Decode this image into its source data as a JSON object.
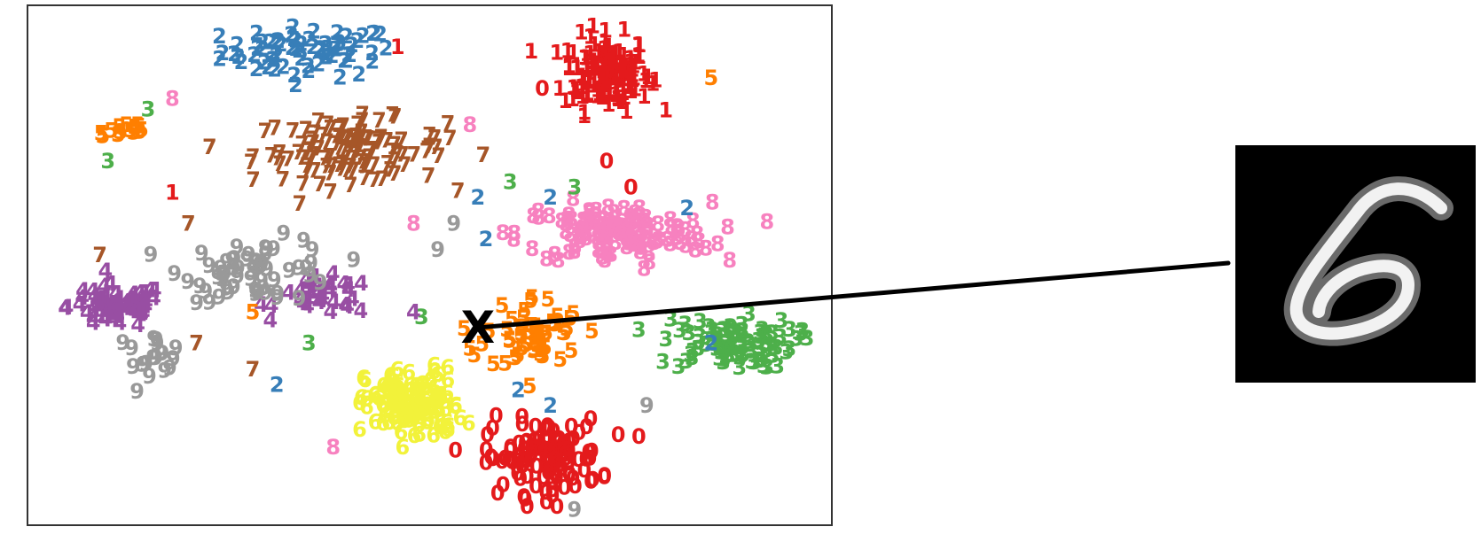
{
  "chart_data": {
    "type": "scatter",
    "title": "",
    "xlabel": "",
    "ylabel": "",
    "xlim": [
      0,
      100
    ],
    "ylim": [
      0,
      100
    ],
    "grid": false,
    "axes_ticks": false,
    "class_colors": {
      "0": "#e41a1c",
      "1": "#e41a1c",
      "2": "#377eb8",
      "3": "#4daf4a",
      "4": "#984ea3",
      "5": "#ff7f00",
      "6": "#f2f23a",
      "7": "#a65628",
      "8": "#f781bf",
      "9": "#999999"
    },
    "clusters": [
      {
        "label": "2",
        "center": [
          35,
          91
        ],
        "spread": [
          9,
          4
        ],
        "count": 70
      },
      {
        "label": "1",
        "center": [
          72,
          87
        ],
        "spread": [
          4.5,
          6
        ],
        "count": 140
      },
      {
        "label": "7",
        "center": [
          40,
          72
        ],
        "spread": [
          10,
          5
        ],
        "count": 120
      },
      {
        "label": "5",
        "center": [
          12,
          76
        ],
        "spread": [
          3,
          1.6
        ],
        "count": 14
      },
      {
        "label": "4",
        "center": [
          11,
          42
        ],
        "spread": [
          5,
          3.5
        ],
        "count": 70
      },
      {
        "label": "4",
        "center": [
          37,
          44
        ],
        "spread": [
          5,
          3
        ],
        "count": 35
      },
      {
        "label": "9",
        "center": [
          29,
          49
        ],
        "spread": [
          8,
          5
        ],
        "count": 60
      },
      {
        "label": "9",
        "center": [
          15,
          33
        ],
        "spread": [
          4,
          3
        ],
        "count": 18
      },
      {
        "label": "8",
        "center": [
          73,
          56
        ],
        "spread": [
          10,
          5
        ],
        "count": 130
      },
      {
        "label": "5",
        "center": [
          63,
          37
        ],
        "spread": [
          5,
          6
        ],
        "count": 55
      },
      {
        "label": "3",
        "center": [
          87,
          35
        ],
        "spread": [
          7,
          4
        ],
        "count": 90
      },
      {
        "label": "6",
        "center": [
          48,
          23
        ],
        "spread": [
          5,
          6
        ],
        "count": 120
      },
      {
        "label": "0",
        "center": [
          64,
          13
        ],
        "spread": [
          6,
          6
        ],
        "count": 110
      }
    ],
    "extra_points": [
      {
        "label": "1",
        "x": 46,
        "y": 92
      },
      {
        "label": "1",
        "x": 18,
        "y": 64
      },
      {
        "label": "0",
        "x": 64,
        "y": 84
      },
      {
        "label": "0",
        "x": 72,
        "y": 70
      },
      {
        "label": "0",
        "x": 75,
        "y": 65
      },
      {
        "label": "5",
        "x": 85,
        "y": 86
      },
      {
        "label": "3",
        "x": 10,
        "y": 70
      },
      {
        "label": "3",
        "x": 15,
        "y": 80
      },
      {
        "label": "8",
        "x": 18,
        "y": 82
      },
      {
        "label": "3",
        "x": 60,
        "y": 66
      },
      {
        "label": "3",
        "x": 68,
        "y": 65
      },
      {
        "label": "2",
        "x": 65,
        "y": 63
      },
      {
        "label": "2",
        "x": 56,
        "y": 63
      },
      {
        "label": "2",
        "x": 57,
        "y": 55
      },
      {
        "label": "2",
        "x": 82,
        "y": 61
      },
      {
        "label": "9",
        "x": 51,
        "y": 53
      },
      {
        "label": "9",
        "x": 53,
        "y": 58
      },
      {
        "label": "7",
        "x": 9,
        "y": 52
      },
      {
        "label": "7",
        "x": 20,
        "y": 58
      },
      {
        "label": "7",
        "x": 21,
        "y": 35
      },
      {
        "label": "7",
        "x": 28,
        "y": 30
      },
      {
        "label": "2",
        "x": 31,
        "y": 27
      },
      {
        "label": "2",
        "x": 61,
        "y": 26
      },
      {
        "label": "2",
        "x": 65,
        "y": 23
      },
      {
        "label": "2",
        "x": 85,
        "y": 35
      },
      {
        "label": "3",
        "x": 49,
        "y": 40
      },
      {
        "label": "3",
        "x": 35,
        "y": 35
      },
      {
        "label": "4",
        "x": 48,
        "y": 41
      },
      {
        "label": "5",
        "x": 28,
        "y": 41
      },
      {
        "label": "5",
        "x": 55,
        "y": 34
      },
      {
        "label": "8",
        "x": 38,
        "y": 15
      },
      {
        "label": "8",
        "x": 55,
        "y": 77
      },
      {
        "label": "8",
        "x": 48,
        "y": 58
      },
      {
        "label": "0",
        "x": 76,
        "y": 17
      },
      {
        "label": "0",
        "x": 57,
        "y": 12
      },
      {
        "label": "9",
        "x": 68,
        "y": 3
      },
      {
        "label": "9",
        "x": 77,
        "y": 23
      }
    ],
    "highlighted_point": {
      "marker": "X",
      "x": 56,
      "y": 38
    },
    "inset": {
      "kind": "grayscale digit image",
      "depicted_digit": "6"
    }
  }
}
